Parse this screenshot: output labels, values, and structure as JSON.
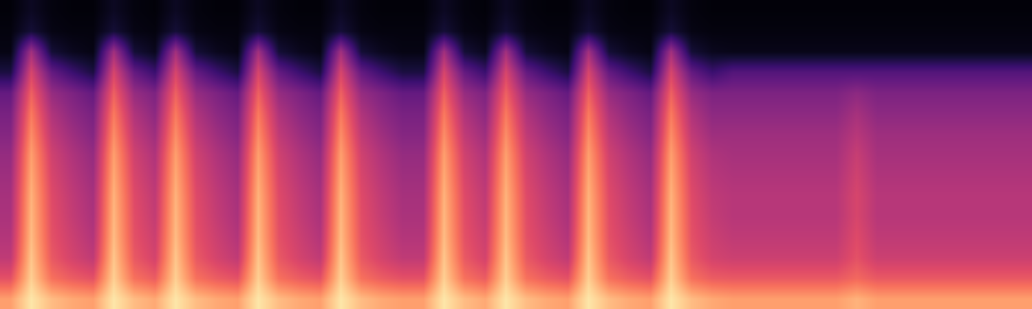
{
  "chart_data": {
    "type": "heatmap",
    "color": "magma",
    "tick_labels": false,
    "xlim": [
      -0.5,
      49.5
    ],
    "ylim": [
      -0.5,
      14.5
    ],
    "zlim": [
      0,
      100
    ],
    "z": [
      [
        80,
        95,
        86,
        82,
        80,
        95,
        86,
        82,
        95,
        86,
        82,
        80,
        95,
        86,
        82,
        80,
        95,
        86,
        82,
        80,
        80,
        95,
        86,
        82,
        95,
        86,
        82,
        80,
        95,
        86,
        82,
        80,
        95,
        86,
        82,
        80,
        80,
        80,
        80,
        80,
        80,
        84,
        80,
        80,
        80,
        80,
        80,
        80,
        80,
        80
      ],
      [
        62,
        90,
        70,
        65,
        62,
        90,
        70,
        65,
        90,
        70,
        65,
        62,
        90,
        70,
        65,
        62,
        90,
        70,
        65,
        62,
        62,
        90,
        70,
        65,
        90,
        70,
        65,
        62,
        90,
        70,
        65,
        62,
        90,
        70,
        65,
        64,
        64,
        64,
        64,
        64,
        64,
        68,
        64,
        64,
        64,
        64,
        64,
        64,
        64,
        64
      ],
      [
        52,
        88,
        64,
        57,
        52,
        88,
        64,
        57,
        88,
        64,
        57,
        52,
        88,
        64,
        57,
        52,
        88,
        64,
        57,
        52,
        52,
        88,
        64,
        57,
        88,
        64,
        57,
        52,
        88,
        64,
        57,
        52,
        88,
        64,
        57,
        55,
        55,
        55,
        55,
        55,
        55,
        62,
        55,
        55,
        55,
        55,
        55,
        55,
        55,
        55
      ],
      [
        49,
        86,
        62,
        55,
        49,
        86,
        62,
        55,
        86,
        62,
        55,
        49,
        86,
        62,
        55,
        49,
        86,
        62,
        55,
        49,
        49,
        86,
        62,
        55,
        86,
        62,
        55,
        49,
        86,
        62,
        55,
        49,
        86,
        62,
        55,
        52,
        52,
        52,
        52,
        52,
        52,
        60,
        52,
        52,
        52,
        52,
        52,
        52,
        52,
        52
      ],
      [
        47,
        85,
        61,
        53,
        47,
        85,
        61,
        53,
        85,
        61,
        53,
        47,
        85,
        61,
        53,
        47,
        85,
        61,
        53,
        47,
        47,
        85,
        61,
        53,
        85,
        61,
        53,
        47,
        85,
        61,
        53,
        47,
        85,
        61,
        53,
        50,
        50,
        50,
        50,
        50,
        50,
        58,
        50,
        50,
        50,
        50,
        50,
        50,
        50,
        50
      ],
      [
        46,
        84,
        60,
        52,
        46,
        84,
        60,
        52,
        84,
        60,
        52,
        46,
        84,
        60,
        52,
        46,
        84,
        60,
        52,
        46,
        46,
        84,
        60,
        52,
        84,
        60,
        52,
        46,
        84,
        60,
        52,
        46,
        84,
        60,
        52,
        50,
        50,
        50,
        50,
        50,
        50,
        58,
        50,
        50,
        50,
        50,
        50,
        50,
        50,
        50
      ],
      [
        44,
        82,
        58,
        50,
        44,
        82,
        58,
        50,
        82,
        58,
        50,
        44,
        82,
        58,
        50,
        44,
        82,
        58,
        50,
        44,
        44,
        82,
        58,
        50,
        82,
        58,
        50,
        44,
        82,
        58,
        50,
        44,
        82,
        58,
        50,
        48,
        48,
        48,
        48,
        48,
        48,
        56,
        48,
        48,
        48,
        48,
        48,
        48,
        48,
        48
      ],
      [
        42,
        80,
        56,
        48,
        42,
        80,
        56,
        48,
        80,
        56,
        48,
        42,
        80,
        56,
        48,
        42,
        80,
        56,
        48,
        42,
        42,
        80,
        56,
        48,
        80,
        56,
        48,
        42,
        80,
        56,
        48,
        42,
        80,
        56,
        48,
        46,
        46,
        46,
        46,
        46,
        46,
        54,
        46,
        46,
        46,
        46,
        46,
        46,
        46,
        46
      ],
      [
        38,
        76,
        52,
        44,
        38,
        76,
        52,
        44,
        76,
        52,
        44,
        38,
        76,
        52,
        44,
        38,
        76,
        52,
        44,
        38,
        38,
        76,
        52,
        44,
        76,
        52,
        44,
        38,
        76,
        52,
        44,
        38,
        76,
        52,
        44,
        44,
        44,
        44,
        44,
        44,
        44,
        50,
        44,
        44,
        44,
        44,
        44,
        44,
        44,
        44
      ],
      [
        35,
        72,
        48,
        40,
        35,
        72,
        48,
        40,
        72,
        48,
        40,
        35,
        72,
        48,
        40,
        35,
        72,
        48,
        40,
        35,
        35,
        72,
        48,
        40,
        72,
        48,
        40,
        35,
        72,
        48,
        40,
        35,
        72,
        48,
        40,
        40,
        40,
        40,
        40,
        40,
        40,
        46,
        40,
        40,
        40,
        40,
        40,
        40,
        40,
        40
      ],
      [
        30,
        66,
        42,
        36,
        30,
        66,
        42,
        36,
        66,
        42,
        36,
        30,
        66,
        42,
        36,
        30,
        66,
        42,
        36,
        30,
        30,
        66,
        42,
        36,
        66,
        42,
        36,
        30,
        66,
        42,
        36,
        30,
        66,
        42,
        36,
        36,
        36,
        36,
        36,
        36,
        36,
        40,
        36,
        36,
        36,
        36,
        36,
        36,
        36,
        36
      ],
      [
        12,
        58,
        30,
        20,
        12,
        58,
        30,
        20,
        58,
        30,
        20,
        12,
        58,
        30,
        20,
        12,
        58,
        30,
        20,
        12,
        12,
        58,
        30,
        20,
        58,
        30,
        20,
        12,
        58,
        30,
        20,
        12,
        58,
        30,
        20,
        26,
        26,
        26,
        26,
        26,
        26,
        26,
        26,
        26,
        26,
        26,
        26,
        26,
        26,
        26
      ],
      [
        3,
        45,
        10,
        5,
        3,
        45,
        10,
        5,
        45,
        10,
        5,
        3,
        45,
        10,
        5,
        3,
        45,
        10,
        5,
        3,
        3,
        45,
        10,
        5,
        45,
        10,
        5,
        3,
        45,
        10,
        5,
        3,
        45,
        10,
        5,
        4,
        4,
        4,
        4,
        4,
        4,
        4,
        4,
        4,
        4,
        4,
        4,
        4,
        4,
        4
      ],
      [
        2,
        10,
        3,
        2,
        2,
        10,
        3,
        2,
        10,
        3,
        2,
        2,
        10,
        3,
        2,
        2,
        10,
        3,
        2,
        2,
        2,
        10,
        3,
        2,
        10,
        3,
        2,
        2,
        10,
        3,
        2,
        2,
        10,
        3,
        2,
        2,
        2,
        2,
        2,
        2,
        2,
        2,
        2,
        2,
        2,
        2,
        2,
        2,
        2,
        2
      ],
      [
        1,
        6,
        2,
        1,
        1,
        6,
        2,
        1,
        6,
        2,
        1,
        1,
        6,
        2,
        1,
        1,
        6,
        2,
        1,
        1,
        1,
        6,
        2,
        1,
        6,
        2,
        1,
        1,
        6,
        2,
        1,
        1,
        6,
        2,
        1,
        1,
        1,
        1,
        1,
        1,
        1,
        1,
        1,
        1,
        1,
        1,
        1,
        1,
        1,
        1
      ]
    ]
  }
}
